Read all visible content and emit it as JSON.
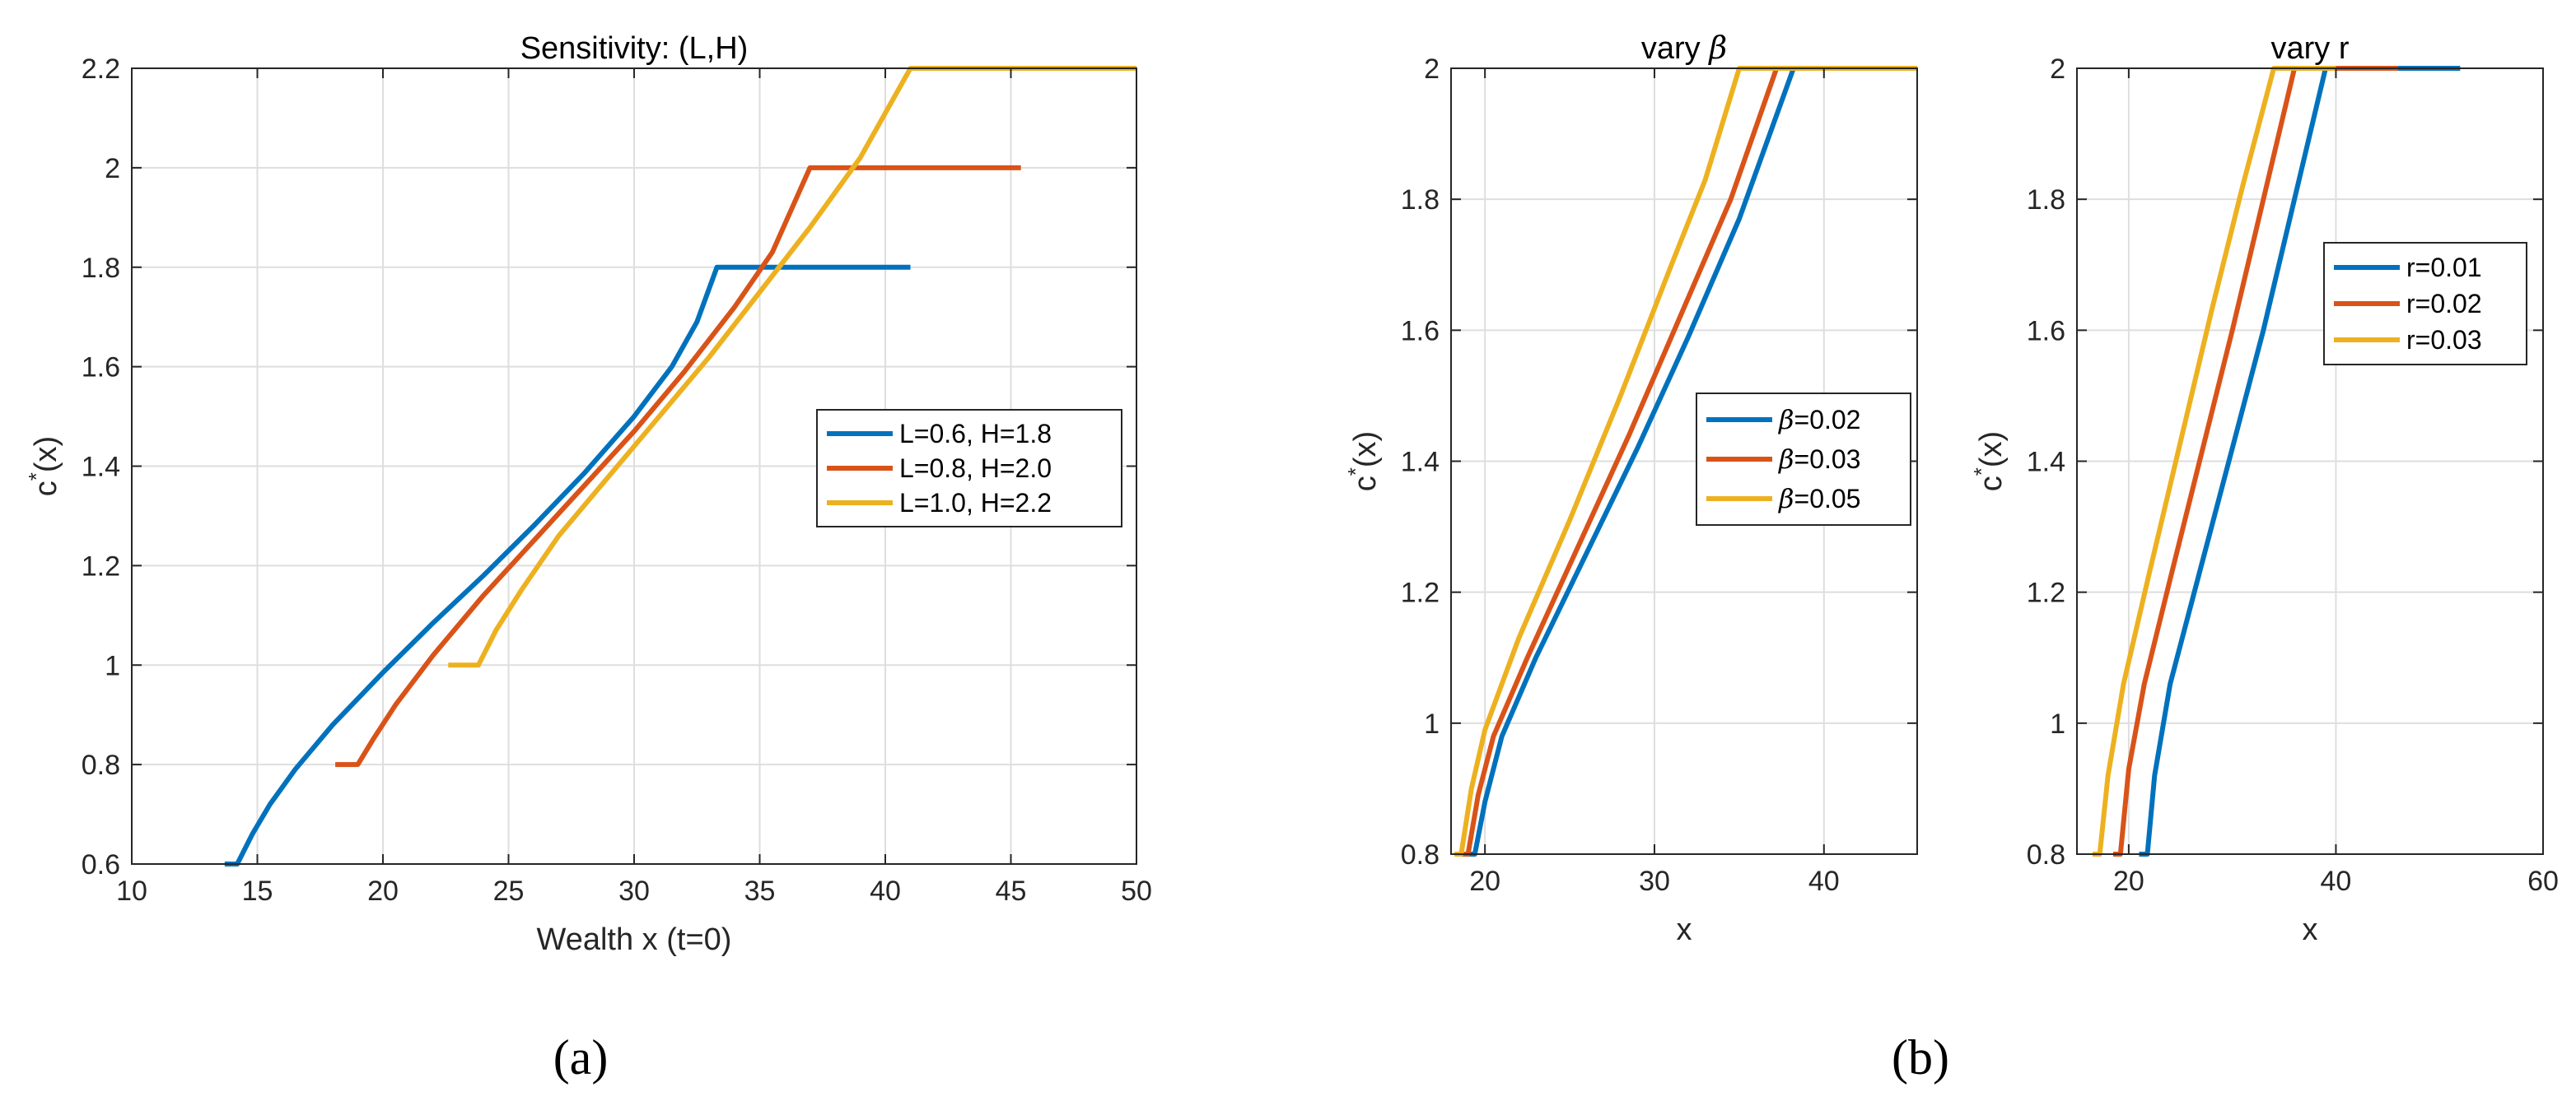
{
  "colors": {
    "blue": "#0072BD",
    "orange": "#D95319",
    "yellow": "#EDB120",
    "grid": "#dedede",
    "axis": "#262626"
  },
  "captions": {
    "a": "(a)",
    "b": "(b)"
  },
  "chart_data": [
    {
      "id": "a",
      "type": "line",
      "title": "Sensitivity: (L,H)",
      "xlabel": "Wealth x (t=0)",
      "ylabel": "c*(x)",
      "xlim": [
        10,
        50
      ],
      "ylim": [
        0.6,
        2.2
      ],
      "xticks": [
        10,
        15,
        20,
        25,
        30,
        35,
        40,
        45,
        50
      ],
      "yticks": [
        0.6,
        0.8,
        1,
        1.2,
        1.4,
        1.6,
        1.8,
        2,
        2.2
      ],
      "grid": true,
      "legend_position": "right-middle",
      "series": [
        {
          "name": "L=0.6, H=1.8",
          "color": "blue",
          "points": [
            [
              13.7,
              0.6
            ],
            [
              14.2,
              0.6
            ],
            [
              14.8,
              0.66
            ],
            [
              15.5,
              0.72
            ],
            [
              16.5,
              0.79
            ],
            [
              18,
              0.88
            ],
            [
              20,
              0.985
            ],
            [
              22,
              1.085
            ],
            [
              24,
              1.18
            ],
            [
              26,
              1.28
            ],
            [
              28,
              1.385
            ],
            [
              30,
              1.5
            ],
            [
              31.5,
              1.6
            ],
            [
              32.5,
              1.69
            ],
            [
              33.3,
              1.8
            ],
            [
              41,
              1.8
            ]
          ]
        },
        {
          "name": "L=0.8, H=2.0",
          "color": "orange",
          "points": [
            [
              18.1,
              0.8
            ],
            [
              19,
              0.8
            ],
            [
              19.6,
              0.85
            ],
            [
              20.5,
              0.92
            ],
            [
              22,
              1.02
            ],
            [
              24,
              1.14
            ],
            [
              26,
              1.25
            ],
            [
              28,
              1.36
            ],
            [
              30,
              1.47
            ],
            [
              32,
              1.59
            ],
            [
              34,
              1.72
            ],
            [
              35.5,
              1.83
            ],
            [
              37,
              2.0
            ],
            [
              45.4,
              2.0
            ]
          ]
        },
        {
          "name": "L=1.0, H=2.2",
          "color": "yellow",
          "points": [
            [
              22.6,
              1.0
            ],
            [
              23.8,
              1.0
            ],
            [
              24.5,
              1.07
            ],
            [
              25.5,
              1.15
            ],
            [
              27,
              1.26
            ],
            [
              29,
              1.38
            ],
            [
              31,
              1.5
            ],
            [
              33,
              1.62
            ],
            [
              35,
              1.75
            ],
            [
              37,
              1.88
            ],
            [
              39,
              2.02
            ],
            [
              41,
              2.2
            ],
            [
              50,
              2.2
            ]
          ]
        }
      ]
    },
    {
      "id": "b1",
      "type": "line",
      "title": "vary β",
      "xlabel": "x",
      "ylabel": "c*(x)",
      "xlim": [
        18,
        45.5
      ],
      "ylim": [
        0.8,
        2
      ],
      "xticks": [
        20,
        30,
        40
      ],
      "yticks": [
        0.8,
        1,
        1.2,
        1.4,
        1.6,
        1.8,
        2
      ],
      "grid": true,
      "legend_position": "right-middle",
      "series": [
        {
          "name": "β=0.02",
          "color": "blue",
          "points": [
            [
              18.8,
              0.8
            ],
            [
              19.4,
              0.8
            ],
            [
              20,
              0.88
            ],
            [
              21,
              0.98
            ],
            [
              23,
              1.1
            ],
            [
              26,
              1.26
            ],
            [
              29,
              1.42
            ],
            [
              32,
              1.59
            ],
            [
              35,
              1.77
            ],
            [
              38.2,
              2.0
            ],
            [
              45.5,
              2.0
            ]
          ]
        },
        {
          "name": "β=0.03",
          "color": "orange",
          "points": [
            [
              18.5,
              0.8
            ],
            [
              19,
              0.8
            ],
            [
              19.6,
              0.89
            ],
            [
              20.5,
              0.98
            ],
            [
              22.5,
              1.1
            ],
            [
              25.5,
              1.27
            ],
            [
              28.5,
              1.44
            ],
            [
              31.5,
              1.62
            ],
            [
              34.5,
              1.8
            ],
            [
              37.2,
              2.0
            ],
            [
              45.5,
              2.0
            ]
          ]
        },
        {
          "name": "β=0.05",
          "color": "yellow",
          "points": [
            [
              18.2,
              0.8
            ],
            [
              18.6,
              0.8
            ],
            [
              19.2,
              0.9
            ],
            [
              20,
              0.99
            ],
            [
              22,
              1.13
            ],
            [
              25,
              1.31
            ],
            [
              28,
              1.5
            ],
            [
              31,
              1.7
            ],
            [
              33,
              1.83
            ],
            [
              35,
              2.0
            ],
            [
              45.5,
              2.0
            ]
          ]
        }
      ]
    },
    {
      "id": "b2",
      "type": "line",
      "title": "vary r",
      "xlabel": "x",
      "ylabel": "c*(x)",
      "xlim": [
        15,
        60
      ],
      "ylim": [
        0.8,
        2
      ],
      "xticks": [
        20,
        40,
        60
      ],
      "yticks": [
        0.8,
        1,
        1.2,
        1.4,
        1.6,
        1.8,
        2
      ],
      "grid": true,
      "legend_position": "top-right",
      "series": [
        {
          "name": "r=0.01",
          "color": "blue",
          "points": [
            [
              21,
              0.8
            ],
            [
              21.8,
              0.8
            ],
            [
              22.5,
              0.92
            ],
            [
              24,
              1.06
            ],
            [
              27,
              1.24
            ],
            [
              30,
              1.42
            ],
            [
              33,
              1.6
            ],
            [
              36,
              1.8
            ],
            [
              39,
              2.0
            ],
            [
              52,
              2.0
            ]
          ]
        },
        {
          "name": "r=0.02",
          "color": "orange",
          "points": [
            [
              18.5,
              0.8
            ],
            [
              19.2,
              0.8
            ],
            [
              20,
              0.93
            ],
            [
              21.5,
              1.06
            ],
            [
              24,
              1.22
            ],
            [
              27,
              1.41
            ],
            [
              30,
              1.6
            ],
            [
              33,
              1.8
            ],
            [
              36,
              2.0
            ],
            [
              46,
              2.0
            ]
          ]
        },
        {
          "name": "r=0.03",
          "color": "yellow",
          "points": [
            [
              16.5,
              0.8
            ],
            [
              17.2,
              0.8
            ],
            [
              18,
              0.92
            ],
            [
              19.5,
              1.06
            ],
            [
              22,
              1.23
            ],
            [
              25,
              1.43
            ],
            [
              28,
              1.63
            ],
            [
              31,
              1.82
            ],
            [
              34,
              2.0
            ],
            [
              40,
              2.0
            ]
          ]
        }
      ]
    }
  ]
}
